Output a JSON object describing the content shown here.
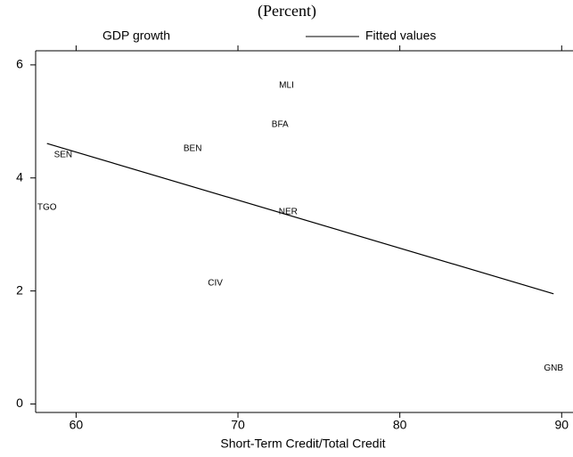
{
  "chart_data": {
    "type": "scatter",
    "title": "(Percent)",
    "x_label": "Short-Term Credit/Total Credit",
    "series": [
      {
        "name": "GDP growth",
        "color": "#000000",
        "x": [
          73.0,
          72.6,
          67.2,
          59.2,
          58.2,
          73.1,
          68.6,
          89.5
        ],
        "values": [
          5.64,
          4.94,
          4.52,
          4.41,
          3.48,
          3.4,
          2.14,
          0.63
        ],
        "point_labels": [
          "MLI",
          "BFA",
          "BEN",
          "SEN",
          "TGO",
          "NER",
          "CIV",
          "GNB"
        ]
      },
      {
        "name": "Fitted values",
        "type": "line",
        "color": "#000000",
        "x": [
          58.2,
          89.5
        ],
        "values": [
          4.61,
          1.95
        ]
      }
    ],
    "xlim": [
      57.5,
      90.7
    ],
    "xticks": [
      60,
      70,
      80,
      90
    ],
    "ylim": [
      -0.15,
      6.25
    ],
    "yticks": [
      0,
      2,
      4,
      6
    ]
  }
}
